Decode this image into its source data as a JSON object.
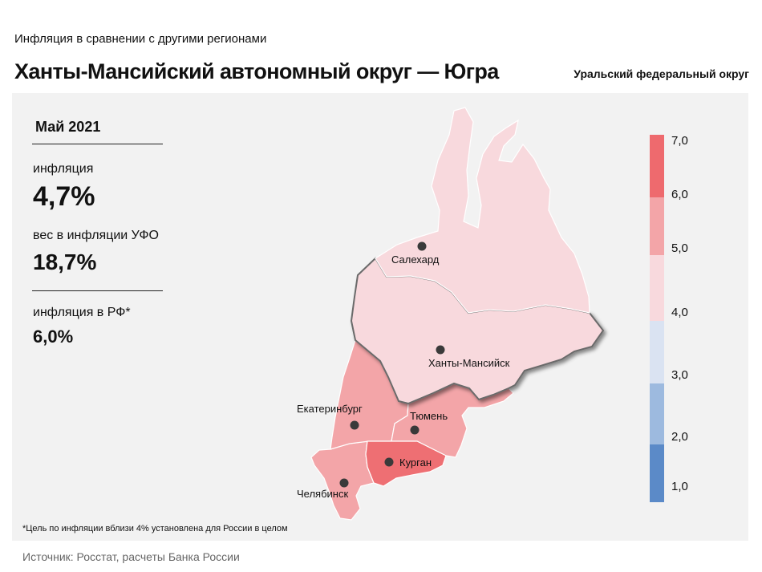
{
  "header": {
    "subtitle": "Инфляция  в сравнении  с другими  регионами",
    "title": "Ханты-Мансийский автономный округ — Югра",
    "district": "Уральский федеральный округ"
  },
  "stats": {
    "period": "Май 2021",
    "inflation_label": "инфляция",
    "inflation_value": "4,7%",
    "weight_label": "вес в инфляции  УФО",
    "weight_value": "18,7%",
    "rf_label": "инфляция  в РФ*",
    "rf_value": "6,0%"
  },
  "map": {
    "cities": [
      {
        "name": "Салехард"
      },
      {
        "name": "Ханты-Мансийск"
      },
      {
        "name": "Екатеринбург"
      },
      {
        "name": "Тюмень"
      },
      {
        "name": "Курган"
      },
      {
        "name": "Челябинск"
      }
    ],
    "colors": {
      "yamal": "#f8d9dd",
      "khmao": "#f8d9dd",
      "sverdlovsk": "#f3a5a8",
      "tyumen": "#f3a5a8",
      "kurgan": "#ee6f73",
      "chelyabinsk": "#f3a5a8"
    }
  },
  "legend": {
    "labels": [
      "7,0",
      "6,0",
      "5,0",
      "4,0",
      "3,0",
      "2,0",
      "1,0"
    ],
    "bands": [
      {
        "color": "#ee6a6e"
      },
      {
        "color": "#f3a5a8"
      },
      {
        "color": "#f8d9dd"
      },
      {
        "color": "#dae3f2"
      },
      {
        "color": "#9dbadf"
      },
      {
        "color": "#5b8ac8"
      }
    ]
  },
  "footnote": "*Цель по инфляции вблизи 4% установлена для России в целом",
  "source": "Источник: Росстат, расчеты Банка России"
}
